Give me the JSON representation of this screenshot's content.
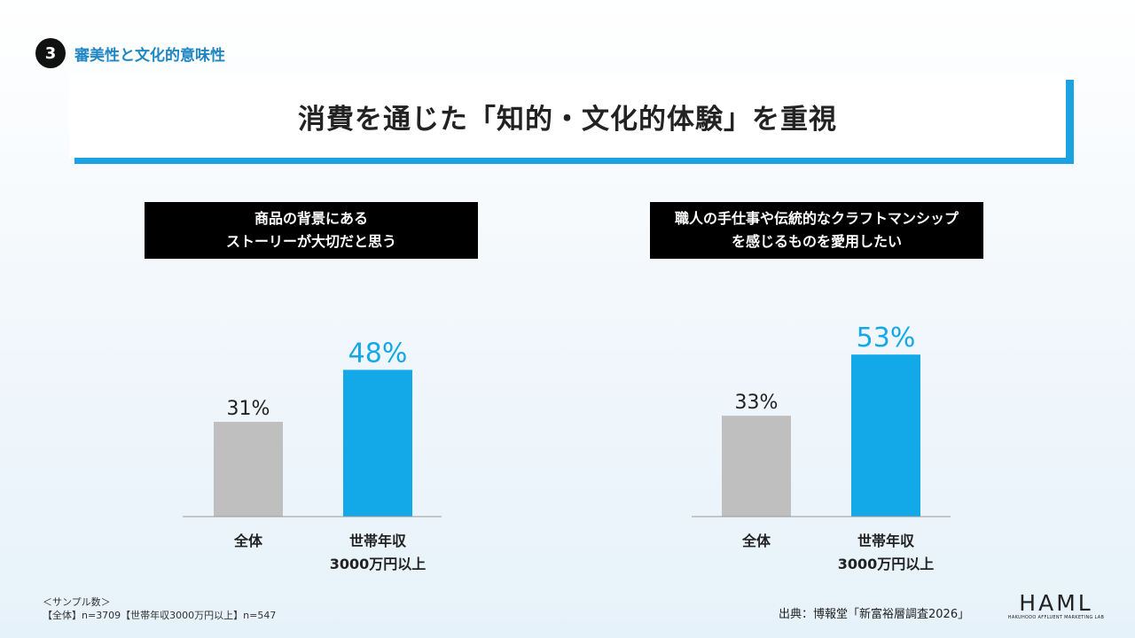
{
  "section": {
    "number": "3",
    "label": "審美性と文化的意味性"
  },
  "title": "消費を通じた「知的・文化的体験」を重視",
  "chart_data": [
    {
      "type": "bar",
      "title_lines": [
        "商品の背景にある",
        "ストーリーが大切だと思う"
      ],
      "categories": [
        {
          "lines": [
            "全体"
          ]
        },
        {
          "lines": [
            "世帯年収",
            "3000万円以上"
          ]
        }
      ],
      "values": [
        31,
        48
      ],
      "value_labels": [
        "31%",
        "48%"
      ],
      "colors": [
        "#bfbfbf",
        "#13a8e8"
      ],
      "label_colors": [
        "#222222",
        "#13a8e8"
      ],
      "ylim": [
        0,
        100
      ]
    },
    {
      "type": "bar",
      "title_lines": [
        "職人の手仕事や伝統的なクラフトマンシップ",
        "を感じるものを愛用したい"
      ],
      "categories": [
        {
          "lines": [
            "全体"
          ]
        },
        {
          "lines": [
            "世帯年収",
            "3000万円以上"
          ]
        }
      ],
      "values": [
        33,
        53
      ],
      "value_labels": [
        "33%",
        "53%"
      ],
      "colors": [
        "#bfbfbf",
        "#13a8e8"
      ],
      "label_colors": [
        "#222222",
        "#13a8e8"
      ],
      "ylim": [
        0,
        100
      ]
    }
  ],
  "footer": {
    "sample_title": "＜サンプル数＞",
    "sample_detail": "【全体】n=3709【世帯年収3000万円以上】n=547",
    "source": "出典：博報堂「新富裕層調査2026」"
  },
  "logo": {
    "main": "HAML",
    "sub": "HAKUHODO AFFLUENT MARKETING LAB"
  }
}
